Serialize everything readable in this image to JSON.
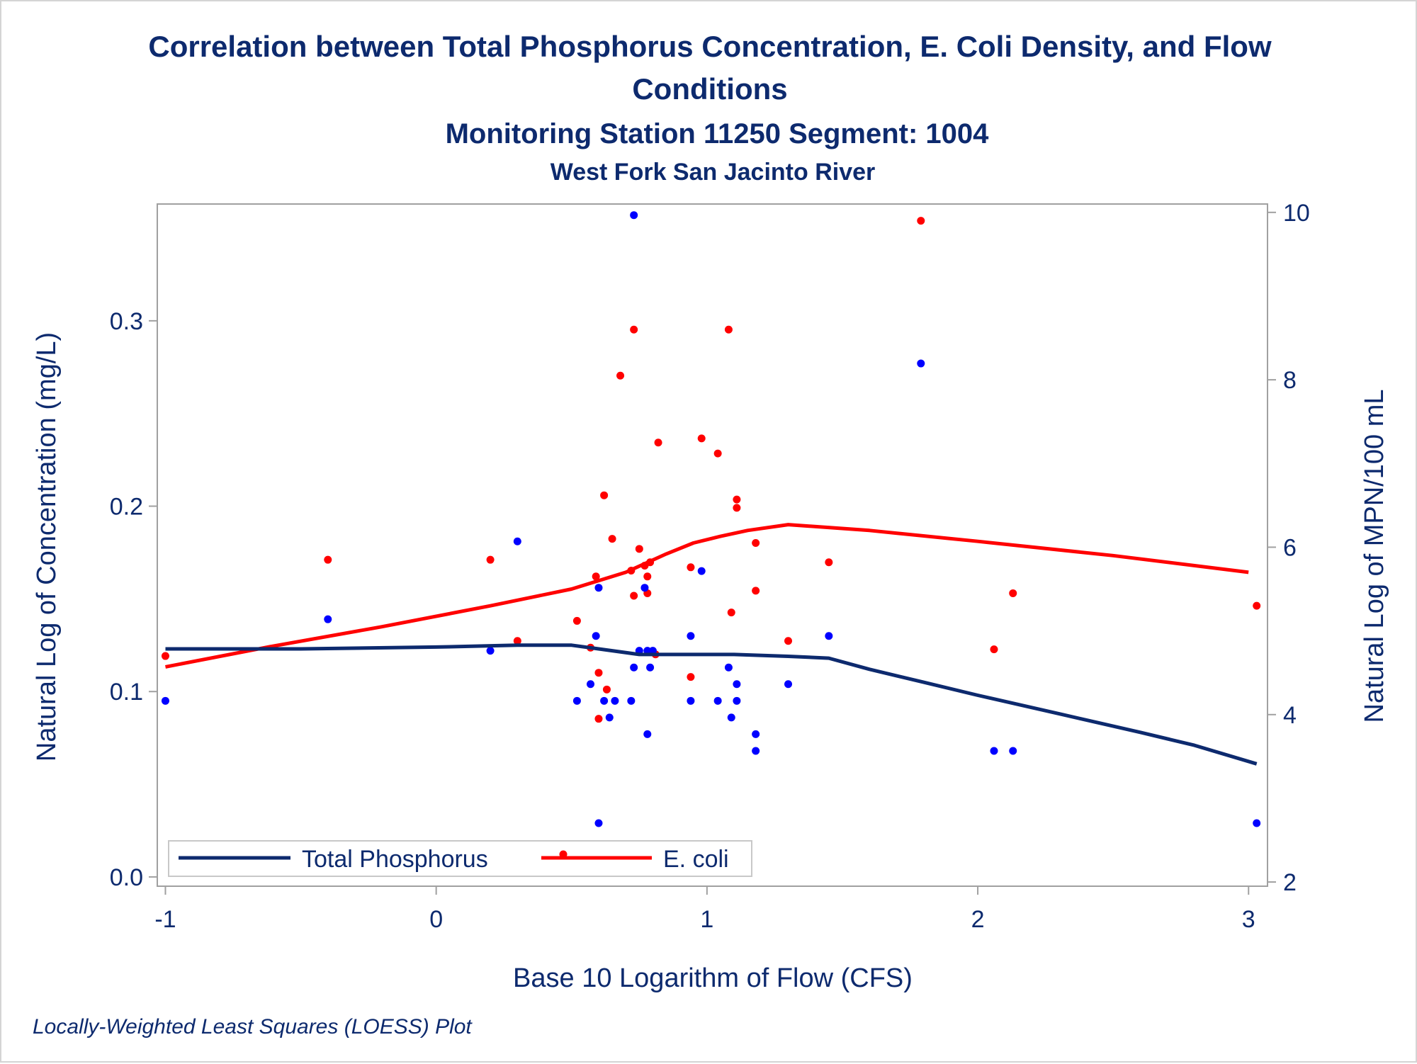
{
  "chart_data": {
    "type": "scatter",
    "title": "Correlation between Total Phosphorus Concentration, E. Coli Density, and Flow",
    "title_line2": "Conditions",
    "subtitle": "Monitoring Station 11250 Segment: 1004",
    "subtitle2": "West Fork San Jacinto River",
    "xlabel": "Base 10 Logarithm of Flow (CFS)",
    "ylabel_left": "Natural Log of Concentration (mg/L)",
    "ylabel_right": "Natural Log of MPN/100 mL",
    "footnote": "Locally-Weighted Least Squares (LOESS) Plot",
    "x_ticks": [
      "-1",
      "0",
      "1",
      "2",
      "3"
    ],
    "y_left_ticks": [
      "0.0",
      "0.1",
      "0.2",
      "0.3"
    ],
    "y_right_ticks": [
      "2",
      "4",
      "6",
      "8",
      "10"
    ],
    "xlim": [
      -1.03,
      3.07
    ],
    "ylim_left": [
      -0.005,
      0.363
    ],
    "ylim_right": [
      1.95,
      10.1
    ],
    "grid": false,
    "legend_position": "bottom-left",
    "colors": {
      "text": "#0d2a6e",
      "phosphorus": "#0d2a6e",
      "phosphorus_points": "#0000ff",
      "ecoli": "#ff0000",
      "frame": "#a0a0a0"
    },
    "series": [
      {
        "name": "Total Phosphorus",
        "axis": "left",
        "points": [
          [
            -1.0,
            0.095
          ],
          [
            -0.4,
            0.139
          ],
          [
            0.2,
            0.122
          ],
          [
            0.3,
            0.181
          ],
          [
            0.52,
            0.095
          ],
          [
            0.57,
            0.104
          ],
          [
            0.59,
            0.13
          ],
          [
            0.6,
            0.156
          ],
          [
            0.6,
            0.029
          ],
          [
            0.62,
            0.095
          ],
          [
            0.64,
            0.086
          ],
          [
            0.66,
            0.095
          ],
          [
            0.72,
            0.095
          ],
          [
            0.73,
            0.357
          ],
          [
            0.73,
            0.113
          ],
          [
            0.75,
            0.122
          ],
          [
            0.77,
            0.156
          ],
          [
            0.78,
            0.077
          ],
          [
            0.78,
            0.122
          ],
          [
            0.79,
            0.113
          ],
          [
            0.8,
            0.122
          ],
          [
            0.94,
            0.13
          ],
          [
            0.94,
            0.095
          ],
          [
            0.98,
            0.165
          ],
          [
            1.04,
            0.095
          ],
          [
            1.08,
            0.113
          ],
          [
            1.09,
            0.086
          ],
          [
            1.11,
            0.104
          ],
          [
            1.11,
            0.095
          ],
          [
            1.18,
            0.077
          ],
          [
            1.18,
            0.068
          ],
          [
            1.3,
            0.104
          ],
          [
            1.45,
            0.13
          ],
          [
            1.79,
            0.277
          ],
          [
            2.06,
            0.068
          ],
          [
            2.13,
            0.068
          ],
          [
            3.03,
            0.029
          ]
        ],
        "loess": [
          [
            -1.0,
            0.123
          ],
          [
            -0.5,
            0.123
          ],
          [
            0.0,
            0.124
          ],
          [
            0.3,
            0.125
          ],
          [
            0.5,
            0.125
          ],
          [
            0.6,
            0.123
          ],
          [
            0.75,
            0.12
          ],
          [
            0.9,
            0.12
          ],
          [
            1.1,
            0.12
          ],
          [
            1.3,
            0.119
          ],
          [
            1.45,
            0.118
          ],
          [
            1.6,
            0.112
          ],
          [
            1.8,
            0.105
          ],
          [
            2.0,
            0.098
          ],
          [
            2.3,
            0.088
          ],
          [
            2.6,
            0.078
          ],
          [
            2.8,
            0.071
          ],
          [
            3.03,
            0.061
          ]
        ]
      },
      {
        "name": "E. coli",
        "axis": "right",
        "points": [
          [
            -1.0,
            4.7
          ],
          [
            -0.4,
            5.85
          ],
          [
            0.2,
            5.85
          ],
          [
            0.3,
            4.88
          ],
          [
            0.52,
            5.12
          ],
          [
            0.57,
            4.8
          ],
          [
            0.59,
            5.65
          ],
          [
            0.6,
            4.5
          ],
          [
            0.6,
            3.95
          ],
          [
            0.62,
            6.62
          ],
          [
            0.63,
            4.3
          ],
          [
            0.65,
            6.1
          ],
          [
            0.68,
            8.05
          ],
          [
            0.72,
            5.72
          ],
          [
            0.73,
            8.6
          ],
          [
            0.73,
            5.42
          ],
          [
            0.75,
            5.98
          ],
          [
            0.77,
            5.78
          ],
          [
            0.78,
            5.65
          ],
          [
            0.78,
            5.45
          ],
          [
            0.79,
            5.82
          ],
          [
            0.81,
            4.72
          ],
          [
            0.82,
            7.25
          ],
          [
            0.94,
            5.76
          ],
          [
            0.94,
            4.45
          ],
          [
            0.98,
            7.3
          ],
          [
            1.04,
            7.12
          ],
          [
            1.09,
            5.22
          ],
          [
            1.08,
            8.6
          ],
          [
            1.11,
            6.57
          ],
          [
            1.11,
            6.47
          ],
          [
            1.18,
            6.05
          ],
          [
            1.18,
            5.48
          ],
          [
            1.3,
            4.88
          ],
          [
            1.45,
            5.82
          ],
          [
            1.79,
            9.9
          ],
          [
            2.06,
            4.78
          ],
          [
            2.13,
            5.45
          ],
          [
            3.03,
            5.3
          ]
        ],
        "loess": [
          [
            -1.0,
            4.57
          ],
          [
            -0.6,
            4.82
          ],
          [
            -0.2,
            5.05
          ],
          [
            0.2,
            5.3
          ],
          [
            0.5,
            5.5
          ],
          [
            0.7,
            5.7
          ],
          [
            0.85,
            5.92
          ],
          [
            0.95,
            6.05
          ],
          [
            1.05,
            6.13
          ],
          [
            1.15,
            6.2
          ],
          [
            1.3,
            6.27
          ],
          [
            1.6,
            6.2
          ],
          [
            2.0,
            6.07
          ],
          [
            2.5,
            5.9
          ],
          [
            3.0,
            5.7
          ]
        ]
      }
    ]
  }
}
